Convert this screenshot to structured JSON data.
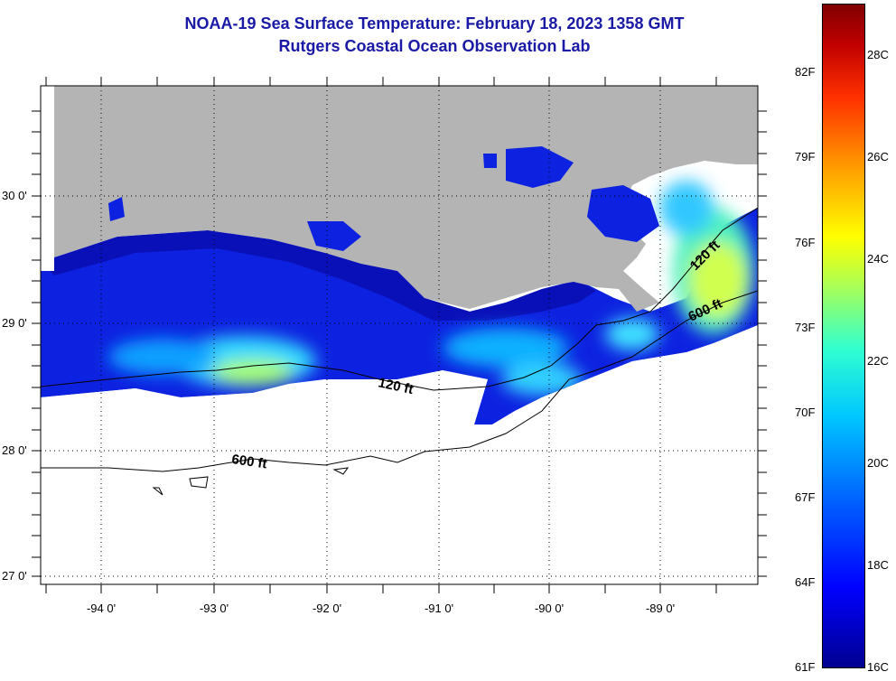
{
  "title": {
    "line1": "NOAA-19 Sea Surface Temperature:  February 18, 2023 1358 GMT",
    "line2": "Rutgers Coastal Ocean Observation Lab"
  },
  "map": {
    "region": "Northern Gulf of Mexico, Louisiana coast",
    "lat_labels": [
      "30 0'",
      "29 0'",
      "28 0'",
      "27 0'"
    ],
    "lon_labels": [
      "-94 0'",
      "-93 0'",
      "-92 0'",
      "-91 0'",
      "-90 0'",
      "-89 0'"
    ],
    "contour_labels": {
      "shelf_west": "120 ft",
      "shelf_east": "120 ft",
      "slope_west": "600 ft",
      "slope_east": "600 ft"
    },
    "colors": {
      "land": "#b4b4b4",
      "cloud": "#ffffff"
    }
  },
  "colorbar": {
    "f_labels": [
      "82F",
      "79F",
      "76F",
      "73F",
      "70F",
      "67F",
      "64F",
      "61F"
    ],
    "c_labels": [
      "28C",
      "26C",
      "24C",
      "22C",
      "20C",
      "18C",
      "16C"
    ],
    "f_range": [
      61,
      84
    ],
    "c_range": [
      16,
      29
    ]
  }
}
